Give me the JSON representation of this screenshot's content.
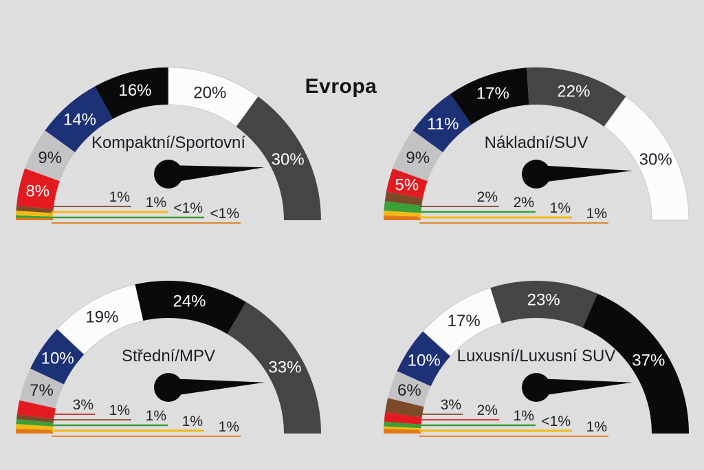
{
  "page": {
    "title": "Evropa",
    "background": "#dedede"
  },
  "palette": {
    "red": "#e31b21",
    "silver": "#c3c3c5",
    "blue": "#1d3176",
    "black": "#0a0a0a",
    "white": "#fcfcfc",
    "darkgray": "#454547",
    "brown": "#7c4a28",
    "yellow": "#f2ba16",
    "green": "#3aa037",
    "orange": "#e07818"
  },
  "light_segments": [
    "silver",
    "white"
  ],
  "dark_text": "#21212b",
  "needle_color": "#0a0a0a",
  "unit": "%",
  "chart_data": [
    {
      "type": "pie",
      "variant": "half-donut-gauge",
      "title": "Kompaktní/Sportovní",
      "categories": [
        "orange",
        "green",
        "yellow",
        "brown",
        "red",
        "silver",
        "blue",
        "black",
        "white",
        "darkgray"
      ],
      "values": [
        0.5,
        0.5,
        1,
        1,
        8,
        9,
        14,
        16,
        20,
        30
      ],
      "labels": [
        "<1%",
        "<1%",
        "1%",
        "1%",
        "8%",
        "9%",
        "14%",
        "16%",
        "20%",
        "30%"
      ],
      "label_placement": [
        "line",
        "line",
        "line",
        "line",
        "arc",
        "arc",
        "arc",
        "arc",
        "arc",
        "arc"
      ],
      "needle_deg": 4
    },
    {
      "type": "pie",
      "variant": "half-donut-gauge",
      "title": "Nákladní/SUV",
      "categories": [
        "orange",
        "yellow",
        "green",
        "brown",
        "red",
        "silver",
        "blue",
        "black",
        "darkgray",
        "white"
      ],
      "values": [
        1,
        1,
        2,
        2,
        5,
        9,
        11,
        17,
        22,
        30
      ],
      "labels": [
        "1%",
        "1%",
        "2%",
        "2%",
        "5%",
        "9%",
        "11%",
        "17%",
        "22%",
        "30%"
      ],
      "label_placement": [
        "line",
        "line",
        "line",
        "line",
        "arc",
        "arc",
        "arc",
        "arc",
        "arc",
        "arc"
      ],
      "needle_deg": 2
    },
    {
      "type": "pie",
      "variant": "half-donut-gauge",
      "title": "Střední/MPV",
      "categories": [
        "orange",
        "yellow",
        "green",
        "brown",
        "red",
        "silver",
        "blue",
        "white",
        "black",
        "darkgray"
      ],
      "values": [
        1,
        1,
        1,
        1,
        3,
        7,
        10,
        19,
        24,
        33
      ],
      "labels": [
        "1%",
        "1%",
        "1%",
        "1%",
        "3%",
        "7%",
        "10%",
        "19%",
        "24%",
        "33%"
      ],
      "label_placement": [
        "line",
        "line",
        "line",
        "line",
        "line",
        "arc",
        "arc",
        "arc",
        "arc",
        "arc"
      ],
      "needle_deg": 3
    },
    {
      "type": "pie",
      "variant": "half-donut-gauge",
      "title": "Luxusní/Luxusní SUV",
      "categories": [
        "orange",
        "yellow",
        "green",
        "red",
        "brown",
        "silver",
        "blue",
        "white",
        "darkgray",
        "black"
      ],
      "values": [
        1,
        0.5,
        1,
        2,
        3,
        6,
        10,
        17,
        23,
        37
      ],
      "labels": [
        "1%",
        "<1%",
        "1%",
        "2%",
        "3%",
        "6%",
        "10%",
        "17%",
        "23%",
        "37%"
      ],
      "label_placement": [
        "line",
        "line",
        "line",
        "line",
        "line",
        "arc",
        "arc",
        "arc",
        "arc",
        "arc"
      ],
      "needle_deg": 3
    }
  ]
}
